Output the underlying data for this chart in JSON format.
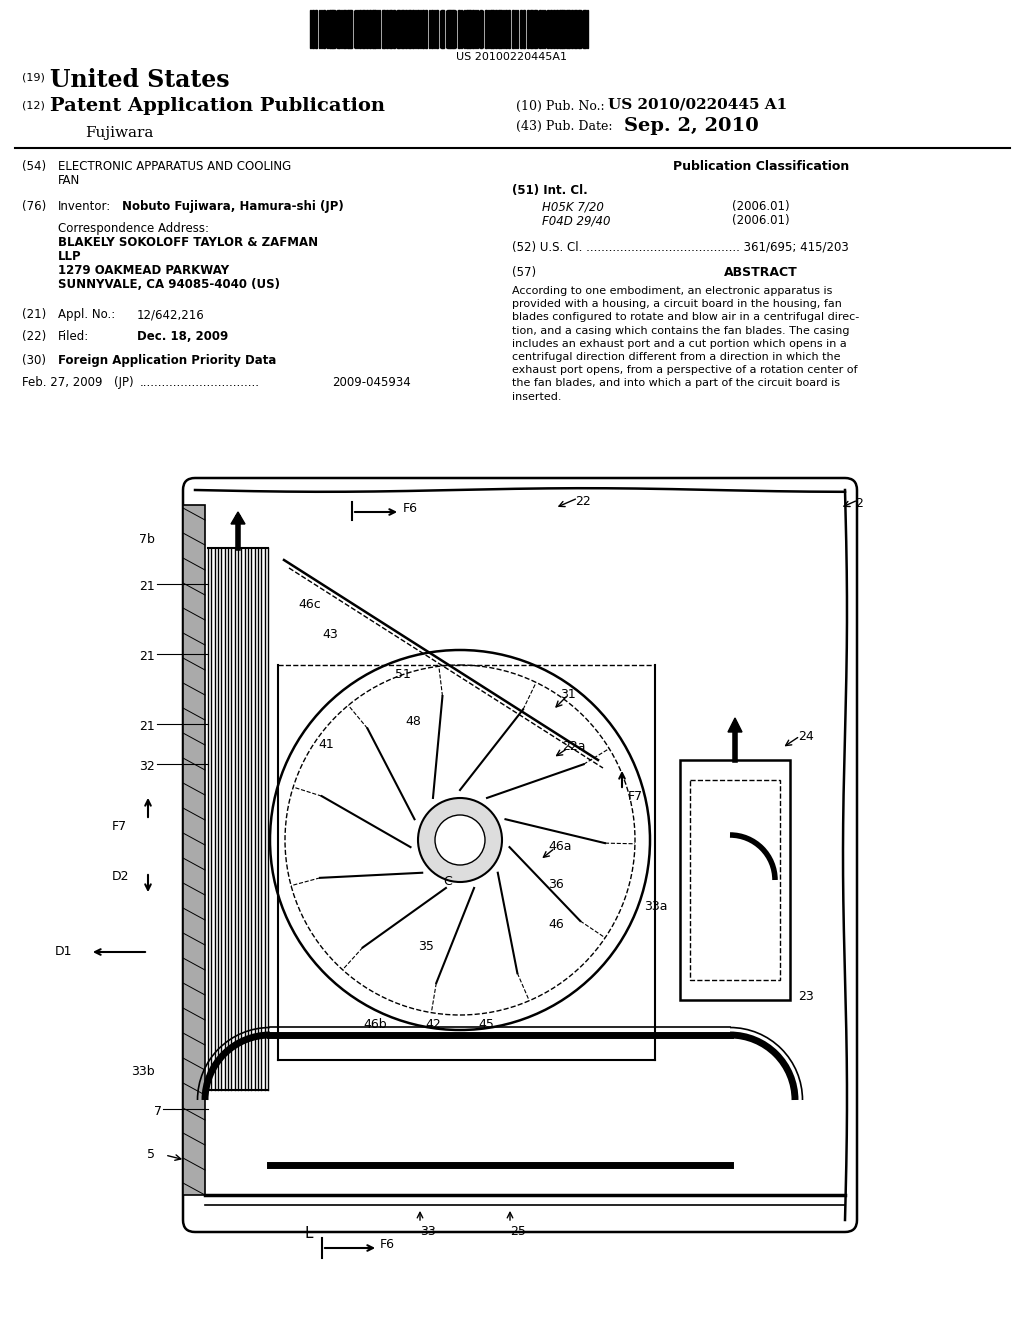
{
  "bg_color": "#ffffff",
  "barcode_text": "US 20100220445A1",
  "pub_no_label": "(10) Pub. No.:",
  "pub_no_value": "US 2010/0220445 A1",
  "pub_date_label": "(43) Pub. Date:",
  "pub_date_value": "Sep. 2, 2010",
  "inventor_name": "Fujiwara",
  "field54_line1": "ELECTRONIC APPARATUS AND COOLING",
  "field54_line2": "FAN",
  "pub_class_label": "Publication Classification",
  "field51_label": "(51) Int. Cl.",
  "field51_line1": "H05K 7/20",
  "field51_year1": "(2006.01)",
  "field51_line2": "F04D 29/40",
  "field51_year2": "(2006.01)",
  "field52_label": "(52) U.S. Cl. ......................................... 361/695; 415/203",
  "field76_value": "Nobuto Fujiwara, Hamura-shi (JP)",
  "correspondence_label": "Correspondence Address:",
  "correspondence_line1": "BLAKELY SOKOLOFF TAYLOR & ZAFMAN",
  "correspondence_line2": "LLP",
  "correspondence_line3": "1279 OAKMEAD PARKWAY",
  "correspondence_line4": "SUNNYVALE, CA 94085-4040 (US)",
  "field21_value": "12/642,216",
  "field22_value": "Dec. 18, 2009",
  "field30_value": "Foreign Application Priority Data",
  "priority_date": "Feb. 27, 2009",
  "priority_country": "(JP)",
  "priority_dots": "................................",
  "priority_number": "2009-045934",
  "abstract_title": "ABSTRACT",
  "abstract_text": "According to one embodiment, an electronic apparatus is\nprovided with a housing, a circuit board in the housing, fan\nblades configured to rotate and blow air in a centrifugal direc-\ntion, and a casing which contains the fan blades. The casing\nincludes an exhaust port and a cut portion which opens in a\ncentrifugal direction different from a direction in which the\nexhaust port opens, from a perspective of a rotation center of\nthe fan blades, and into which a part of the circuit board is\ninserted."
}
